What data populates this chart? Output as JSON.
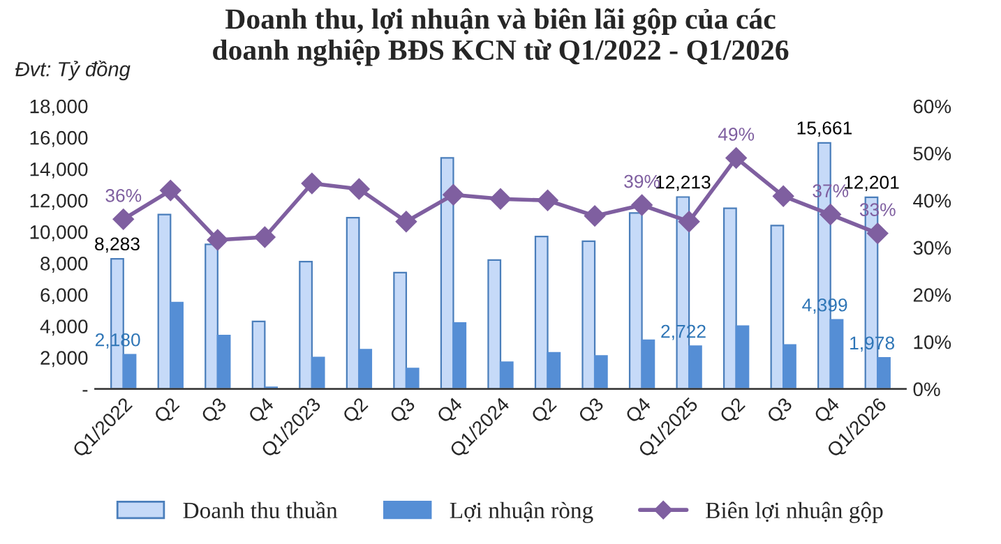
{
  "chart_data": {
    "type": "bar",
    "title": "Doanh thu, lợi nhuận và biên lãi gộp của các\ndoanh nghiệp BĐS KCN từ Q1/2022 - Q1/2026",
    "annotations": [
      "Đvt: Tỷ đồng"
    ],
    "categories": [
      "Q1/2022",
      "Q2",
      "Q3",
      "Q4",
      "Q1/2023",
      "Q2",
      "Q3",
      "Q4",
      "Q1/2024",
      "Q2",
      "Q3",
      "Q4",
      "Q1/2025",
      "Q2",
      "Q3",
      "Q4",
      "Q1/2026"
    ],
    "series": [
      {
        "name": "Doanh thu thuần",
        "color": "#c6daf8",
        "values": [
          8283,
          11100,
          9200,
          4300,
          8100,
          10900,
          7400,
          14700,
          8200,
          9700,
          9400,
          11200,
          12213,
          11500,
          10400,
          15661,
          12201
        ],
        "value_labels": [
          "8,283",
          null,
          null,
          null,
          null,
          null,
          null,
          null,
          null,
          null,
          null,
          null,
          "12,213",
          null,
          null,
          "15,661",
          "12,201"
        ]
      },
      {
        "name": "Lợi nhuận ròng",
        "color": "#558ed5",
        "values": [
          2180,
          5500,
          3400,
          100,
          2000,
          2500,
          1300,
          4200,
          1700,
          2300,
          2100,
          3100,
          2722,
          4000,
          2800,
          4399,
          1978
        ],
        "value_labels": [
          "2,180",
          null,
          null,
          null,
          null,
          null,
          null,
          null,
          null,
          null,
          null,
          null,
          "2,722",
          null,
          null,
          "4,399",
          "1,978"
        ]
      },
      {
        "name": "Biên lợi nhuận gộp",
        "type": "line",
        "axis": "y2",
        "color": "#7f5fa0",
        "values": [
          36,
          42.1,
          31.6,
          32.2,
          43.6,
          42.4,
          35.5,
          41.2,
          40.3,
          40,
          36.7,
          39,
          35.5,
          49,
          40.9,
          37,
          33
        ],
        "value_labels": [
          "36%",
          null,
          null,
          null,
          null,
          null,
          null,
          null,
          null,
          null,
          null,
          "39%",
          null,
          "49%",
          null,
          "37%",
          "33%"
        ]
      }
    ],
    "ylim": [
      0,
      18000
    ],
    "yticks": [
      {
        "value": 0,
        "label": "-"
      },
      {
        "value": 2000,
        "label": "2,000"
      },
      {
        "value": 4000,
        "label": "4,000"
      },
      {
        "value": 6000,
        "label": "6,000"
      },
      {
        "value": 8000,
        "label": "8,000"
      },
      {
        "value": 10000,
        "label": "10,000"
      },
      {
        "value": 12000,
        "label": "12,000"
      },
      {
        "value": 14000,
        "label": "14,000"
      },
      {
        "value": 16000,
        "label": "16,000"
      },
      {
        "value": 18000,
        "label": "18,000"
      }
    ],
    "y2lim": [
      0,
      60
    ],
    "y2ticks": [
      {
        "value": 0,
        "label": "0%"
      },
      {
        "value": 10,
        "label": "10%"
      },
      {
        "value": 20,
        "label": "20%"
      },
      {
        "value": 30,
        "label": "30%"
      },
      {
        "value": 40,
        "label": "40%"
      },
      {
        "value": 50,
        "label": "50%"
      },
      {
        "value": 60,
        "label": "60%"
      }
    ],
    "marker": "diamond",
    "grid": false,
    "legend": "bottom"
  }
}
